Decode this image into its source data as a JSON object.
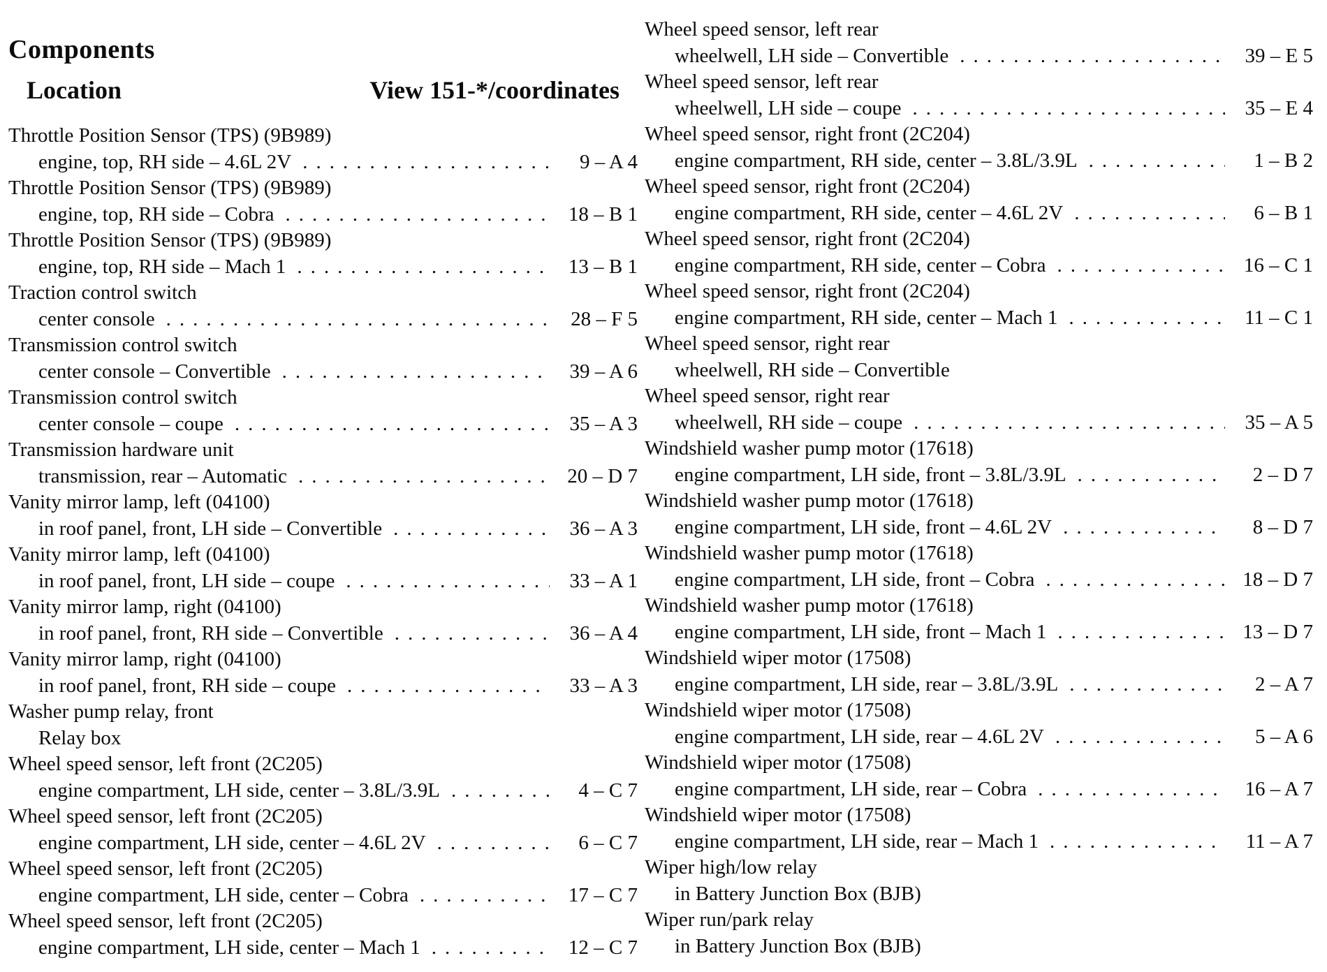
{
  "header": {
    "title": "Components",
    "location_label": "Location",
    "view_label": "View 151-*/coordinates"
  },
  "left_column": [
    {
      "name": "Throttle Position Sensor (TPS) (9B989)",
      "location": "engine, top, RH side – 4.6L 2V",
      "coord": "9 – A 4"
    },
    {
      "name": "Throttle Position Sensor (TPS) (9B989)",
      "location": "engine, top, RH side – Cobra",
      "coord": "18 – B 1"
    },
    {
      "name": "Throttle Position Sensor (TPS) (9B989)",
      "location": "engine, top, RH side – Mach 1",
      "coord": "13 – B 1"
    },
    {
      "name": "Traction control switch",
      "location": "center console",
      "coord": "28 – F 5"
    },
    {
      "name": "Transmission control switch",
      "location": "center console – Convertible",
      "coord": "39 – A 6"
    },
    {
      "name": "Transmission control switch",
      "location": "center console – coupe",
      "coord": "35 – A 3"
    },
    {
      "name": "Transmission hardware unit",
      "location": "transmission, rear – Automatic",
      "coord": "20 – D 7"
    },
    {
      "name": "Vanity mirror lamp, left (04100)",
      "location": "in roof panel, front, LH side – Convertible",
      "coord": "36 – A 3"
    },
    {
      "name": "Vanity mirror lamp, left (04100)",
      "location": "in roof panel, front, LH side – coupe",
      "coord": "33 – A 1"
    },
    {
      "name": "Vanity mirror lamp, right (04100)",
      "location": "in roof panel, front, RH side – Convertible",
      "coord": "36 – A 4"
    },
    {
      "name": "Vanity mirror lamp, right (04100)",
      "location": "in roof panel, front, RH side – coupe",
      "coord": "33 – A 3"
    },
    {
      "name": "Washer pump relay, front",
      "location": "Relay box",
      "coord": ""
    },
    {
      "name": "Wheel speed sensor, left front (2C205)",
      "location": "engine compartment, LH side, center – 3.8L/3.9L",
      "coord": "4 – C 7"
    },
    {
      "name": "Wheel speed sensor, left front (2C205)",
      "location": "engine compartment, LH side, center – 4.6L 2V",
      "coord": "6 – C 7"
    },
    {
      "name": "Wheel speed sensor, left front (2C205)",
      "location": "engine compartment, LH side, center – Cobra",
      "coord": "17 – C 7"
    },
    {
      "name": "Wheel speed sensor, left front (2C205)",
      "location": "engine compartment, LH side, center – Mach 1",
      "coord": "12 – C 7"
    }
  ],
  "right_column": [
    {
      "name": "Wheel speed sensor, left rear",
      "location": "wheelwell, LH side – Convertible",
      "coord": "39 – E 5"
    },
    {
      "name": "Wheel speed sensor, left rear",
      "location": "wheelwell, LH side – coupe",
      "coord": "35 – E 4"
    },
    {
      "name": "Wheel speed sensor, right front (2C204)",
      "location": "engine compartment, RH side, center – 3.8L/3.9L",
      "coord": "1 – B 2"
    },
    {
      "name": "Wheel speed sensor, right front (2C204)",
      "location": "engine compartment, RH side, center – 4.6L 2V",
      "coord": "6 – B 1"
    },
    {
      "name": "Wheel speed sensor, right front (2C204)",
      "location": "engine compartment, RH side, center – Cobra",
      "coord": "16 – C 1"
    },
    {
      "name": "Wheel speed sensor, right front (2C204)",
      "location": "engine compartment, RH side, center – Mach 1",
      "coord": "11 – C 1"
    },
    {
      "name": "Wheel speed sensor, right rear",
      "location": "wheelwell, RH side – Convertible",
      "coord": ""
    },
    {
      "name": "Wheel speed sensor, right rear",
      "location": "wheelwell, RH side – coupe",
      "coord": "35 – A 5"
    },
    {
      "name": "Windshield washer pump motor (17618)",
      "location": "engine compartment, LH side, front – 3.8L/3.9L",
      "coord": "2 – D 7"
    },
    {
      "name": "Windshield washer pump motor (17618)",
      "location": "engine compartment, LH side, front – 4.6L 2V",
      "coord": "8 – D 7"
    },
    {
      "name": "Windshield washer pump motor (17618)",
      "location": "engine compartment, LH side, front – Cobra",
      "coord": "18 – D 7"
    },
    {
      "name": "Windshield washer pump motor (17618)",
      "location": "engine compartment, LH side, front – Mach 1",
      "coord": "13 – D 7"
    },
    {
      "name": "Windshield wiper motor (17508)",
      "location": "engine compartment, LH side, rear – 3.8L/3.9L",
      "coord": "2 – A 7"
    },
    {
      "name": "Windshield wiper motor (17508)",
      "location": "engine compartment, LH side, rear – 4.6L 2V",
      "coord": "5 – A 6"
    },
    {
      "name": "Windshield wiper motor (17508)",
      "location": "engine compartment, LH side, rear – Cobra",
      "coord": "16 – A 7"
    },
    {
      "name": "Windshield wiper motor (17508)",
      "location": "engine compartment, LH side, rear – Mach 1",
      "coord": "11 – A 7"
    },
    {
      "name": "Wiper high/low relay",
      "location": "in Battery Junction Box (BJB)",
      "coord": ""
    },
    {
      "name": "Wiper run/park relay",
      "location": "in Battery Junction Box (BJB)",
      "coord": ""
    }
  ]
}
